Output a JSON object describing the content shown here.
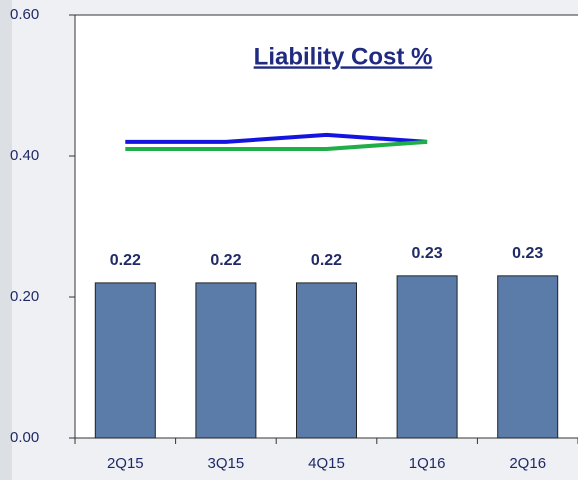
{
  "chart_data": {
    "type": "bar",
    "title": "Liability Cost %",
    "categories": [
      "2Q15",
      "3Q15",
      "4Q15",
      "1Q16",
      "2Q16"
    ],
    "values": [
      0.22,
      0.22,
      0.22,
      0.23,
      0.23
    ],
    "color": "#5b7ca8",
    "series": [
      {
        "color": "#1414e0",
        "values": [
          0.42,
          0.42,
          0.43,
          0.42,
          null
        ]
      },
      {
        "color": "#1fae48",
        "values": [
          0.41,
          0.41,
          0.41,
          0.42,
          null
        ]
      }
    ],
    "ylim": [
      0,
      0.6
    ],
    "yticks": [
      {
        "value": 0,
        "label": "0.00"
      },
      {
        "value": 0.2,
        "label": "0.20"
      },
      {
        "value": 0.4,
        "label": "0.40"
      },
      {
        "value": 0.6,
        "label": "0.60"
      }
    ]
  }
}
